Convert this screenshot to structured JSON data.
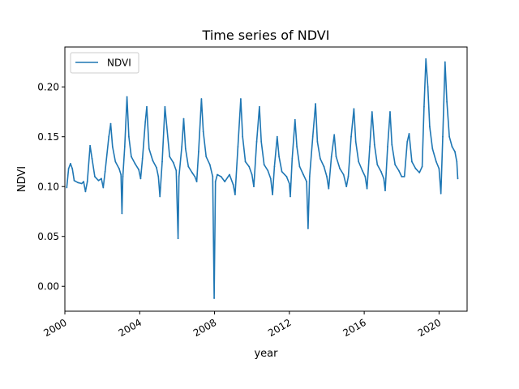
{
  "chart_data": {
    "type": "line",
    "title": "Time series of NDVI",
    "xlabel": "year",
    "ylabel": "NDVI",
    "xlim": [
      2000.0,
      2021.5
    ],
    "ylim": [
      -0.025,
      0.24
    ],
    "x_ticks": [
      2000,
      2004,
      2008,
      2012,
      2016,
      2020
    ],
    "x_tick_labels": [
      "2000",
      "2004",
      "2008",
      "2012",
      "2016",
      "2020"
    ],
    "y_ticks": [
      0.0,
      0.05,
      0.1,
      0.15,
      0.2
    ],
    "y_tick_labels": [
      "0.00",
      "0.05",
      "0.10",
      "0.15",
      "0.20"
    ],
    "grid": false,
    "legend_position": "top-left",
    "series": [
      {
        "name": "NDVI",
        "color": "#1f77b4",
        "points": [
          [
            2000.1,
            0.099
          ],
          [
            2000.2,
            0.118
          ],
          [
            2000.3,
            0.123
          ],
          [
            2000.4,
            0.118
          ],
          [
            2000.5,
            0.106
          ],
          [
            2000.7,
            0.104
          ],
          [
            2000.9,
            0.103
          ],
          [
            2001.0,
            0.105
          ],
          [
            2001.1,
            0.095
          ],
          [
            2001.2,
            0.105
          ],
          [
            2001.35,
            0.141
          ],
          [
            2001.45,
            0.128
          ],
          [
            2001.6,
            0.11
          ],
          [
            2001.8,
            0.106
          ],
          [
            2001.95,
            0.108
          ],
          [
            2002.05,
            0.099
          ],
          [
            2002.15,
            0.115
          ],
          [
            2002.35,
            0.15
          ],
          [
            2002.45,
            0.163
          ],
          [
            2002.55,
            0.14
          ],
          [
            2002.7,
            0.125
          ],
          [
            2002.9,
            0.118
          ],
          [
            2003.0,
            0.112
          ],
          [
            2003.05,
            0.073
          ],
          [
            2003.1,
            0.11
          ],
          [
            2003.2,
            0.14
          ],
          [
            2003.32,
            0.19
          ],
          [
            2003.42,
            0.15
          ],
          [
            2003.55,
            0.13
          ],
          [
            2003.75,
            0.123
          ],
          [
            2003.95,
            0.117
          ],
          [
            2004.05,
            0.108
          ],
          [
            2004.15,
            0.128
          ],
          [
            2004.3,
            0.165
          ],
          [
            2004.38,
            0.18
          ],
          [
            2004.5,
            0.138
          ],
          [
            2004.7,
            0.126
          ],
          [
            2004.9,
            0.119
          ],
          [
            2005.0,
            0.11
          ],
          [
            2005.08,
            0.09
          ],
          [
            2005.2,
            0.125
          ],
          [
            2005.35,
            0.18
          ],
          [
            2005.45,
            0.16
          ],
          [
            2005.6,
            0.13
          ],
          [
            2005.8,
            0.124
          ],
          [
            2005.95,
            0.116
          ],
          [
            2006.05,
            0.048
          ],
          [
            2006.1,
            0.11
          ],
          [
            2006.25,
            0.14
          ],
          [
            2006.35,
            0.168
          ],
          [
            2006.45,
            0.138
          ],
          [
            2006.6,
            0.12
          ],
          [
            2006.8,
            0.114
          ],
          [
            2006.95,
            0.11
          ],
          [
            2007.05,
            0.105
          ],
          [
            2007.15,
            0.135
          ],
          [
            2007.3,
            0.188
          ],
          [
            2007.4,
            0.155
          ],
          [
            2007.55,
            0.13
          ],
          [
            2007.75,
            0.122
          ],
          [
            2007.9,
            0.11
          ],
          [
            2007.98,
            -0.012
          ],
          [
            2008.05,
            0.105
          ],
          [
            2008.15,
            0.112
          ],
          [
            2008.35,
            0.11
          ],
          [
            2008.55,
            0.105
          ],
          [
            2008.8,
            0.112
          ],
          [
            2009.0,
            0.102
          ],
          [
            2009.1,
            0.092
          ],
          [
            2009.25,
            0.14
          ],
          [
            2009.4,
            0.188
          ],
          [
            2009.5,
            0.15
          ],
          [
            2009.65,
            0.125
          ],
          [
            2009.85,
            0.12
          ],
          [
            2010.0,
            0.112
          ],
          [
            2010.1,
            0.1
          ],
          [
            2010.25,
            0.145
          ],
          [
            2010.4,
            0.18
          ],
          [
            2010.5,
            0.145
          ],
          [
            2010.65,
            0.122
          ],
          [
            2010.85,
            0.116
          ],
          [
            2011.0,
            0.108
          ],
          [
            2011.1,
            0.092
          ],
          [
            2011.2,
            0.12
          ],
          [
            2011.35,
            0.15
          ],
          [
            2011.45,
            0.13
          ],
          [
            2011.6,
            0.115
          ],
          [
            2011.85,
            0.11
          ],
          [
            2012.0,
            0.103
          ],
          [
            2012.05,
            0.09
          ],
          [
            2012.15,
            0.128
          ],
          [
            2012.3,
            0.167
          ],
          [
            2012.4,
            0.14
          ],
          [
            2012.55,
            0.12
          ],
          [
            2012.75,
            0.112
          ],
          [
            2012.92,
            0.105
          ],
          [
            2013.0,
            0.058
          ],
          [
            2013.08,
            0.11
          ],
          [
            2013.25,
            0.15
          ],
          [
            2013.4,
            0.183
          ],
          [
            2013.5,
            0.145
          ],
          [
            2013.65,
            0.128
          ],
          [
            2013.85,
            0.12
          ],
          [
            2014.0,
            0.11
          ],
          [
            2014.1,
            0.098
          ],
          [
            2014.25,
            0.13
          ],
          [
            2014.4,
            0.152
          ],
          [
            2014.5,
            0.13
          ],
          [
            2014.7,
            0.118
          ],
          [
            2014.9,
            0.112
          ],
          [
            2015.05,
            0.1
          ],
          [
            2015.15,
            0.11
          ],
          [
            2015.3,
            0.15
          ],
          [
            2015.45,
            0.178
          ],
          [
            2015.55,
            0.145
          ],
          [
            2015.7,
            0.125
          ],
          [
            2015.9,
            0.116
          ],
          [
            2016.05,
            0.11
          ],
          [
            2016.15,
            0.098
          ],
          [
            2016.3,
            0.14
          ],
          [
            2016.42,
            0.175
          ],
          [
            2016.55,
            0.142
          ],
          [
            2016.7,
            0.122
          ],
          [
            2016.9,
            0.115
          ],
          [
            2017.05,
            0.108
          ],
          [
            2017.12,
            0.096
          ],
          [
            2017.25,
            0.14
          ],
          [
            2017.38,
            0.175
          ],
          [
            2017.48,
            0.142
          ],
          [
            2017.65,
            0.122
          ],
          [
            2017.85,
            0.116
          ],
          [
            2018.0,
            0.11
          ],
          [
            2018.15,
            0.11
          ],
          [
            2018.3,
            0.145
          ],
          [
            2018.4,
            0.153
          ],
          [
            2018.55,
            0.125
          ],
          [
            2018.75,
            0.118
          ],
          [
            2018.95,
            0.114
          ],
          [
            2019.1,
            0.12
          ],
          [
            2019.2,
            0.18
          ],
          [
            2019.3,
            0.228
          ],
          [
            2019.4,
            0.2
          ],
          [
            2019.5,
            0.16
          ],
          [
            2019.65,
            0.138
          ],
          [
            2019.85,
            0.125
          ],
          [
            2020.0,
            0.118
          ],
          [
            2020.1,
            0.093
          ],
          [
            2020.2,
            0.15
          ],
          [
            2020.32,
            0.225
          ],
          [
            2020.42,
            0.185
          ],
          [
            2020.55,
            0.15
          ],
          [
            2020.7,
            0.14
          ],
          [
            2020.85,
            0.135
          ],
          [
            2020.95,
            0.125
          ],
          [
            2021.0,
            0.108
          ]
        ]
      }
    ]
  }
}
